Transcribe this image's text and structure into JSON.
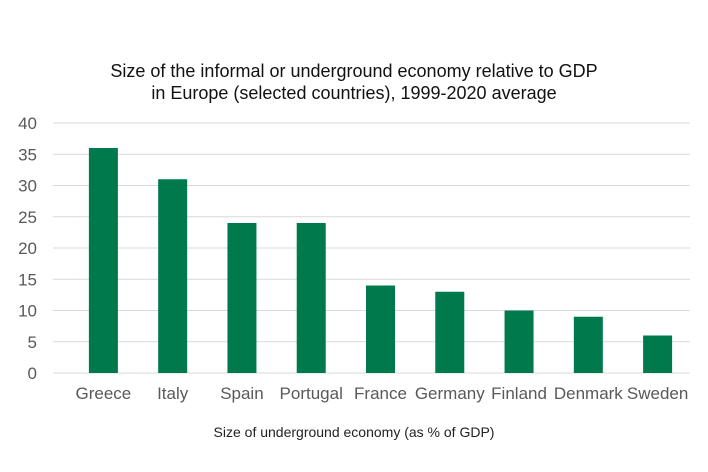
{
  "chart_data": {
    "type": "bar",
    "title_line1": "Size of the informal or underground economy relative to GDP",
    "title_line2": "in Europe (selected countries), 1999-2020 average",
    "xlabel": "Size of underground economy (as % of GDP)",
    "ylabel": "",
    "categories": [
      "Greece",
      "Italy",
      "Spain",
      "Portugal",
      "France",
      "Germany",
      "Finland",
      "Denmark",
      "Sweden"
    ],
    "values": [
      36,
      31,
      24,
      24,
      14,
      13,
      10,
      9,
      6
    ],
    "ylim": [
      0,
      40
    ],
    "yticks": [
      "0",
      "5",
      "10",
      "15",
      "20",
      "25",
      "30",
      "35",
      "40"
    ],
    "grid": true,
    "bar_color": "#007A4D"
  }
}
